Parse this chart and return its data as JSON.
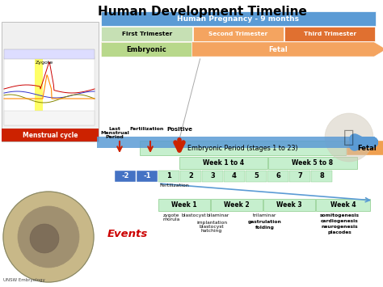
{
  "title": "Human Development Timeline",
  "bg_color": "#ffffff",
  "colors": {
    "pregnancy_blue": "#5b9bd5",
    "trimester1_green": "#c6e0b4",
    "trimester2_orange": "#f4a460",
    "trimester3_orange": "#e07030",
    "embryonic_green": "#b8d88b",
    "fetal_orange": "#f4a460",
    "blue_arrow": "#5b9bd5",
    "light_green": "#c6efce",
    "neg_blue": "#4472c4",
    "red_arrow": "#cc2200",
    "menstrual_red": "#cc2200",
    "fetal_box_orange": "#f0a050",
    "events_red": "#cc0000"
  },
  "pregnancy_label": "Human Pregnancy - 9 months",
  "trimesters": [
    "First Trimester",
    "Second Trimester",
    "Third Trimester"
  ],
  "embryonic_label": "Embryonic",
  "fetal_label": "Fetal",
  "embryonic_period_label": "Embryonic Period (stages 1 to 23)",
  "fetal_box_label": "Fetal",
  "week_groups": [
    "Week 1 to 4",
    "Week 5 to 8"
  ],
  "week_numbers_neg": [
    -2,
    -1
  ],
  "week_numbers_pos": [
    1,
    2,
    3,
    4,
    5,
    6,
    7,
    8
  ],
  "week_labels": [
    "Week 1",
    "Week 2",
    "Week 3",
    "Week 4"
  ],
  "lmp_lines": [
    "Last",
    "Menstrual",
    "Period"
  ],
  "fertilization_label": "Fertilization",
  "positive_label": "Positive",
  "zygote_label": "Zygote",
  "events_label": "Events",
  "menstrual_label": "Menstrual cycle",
  "unsw_label": "UNSW Embryology",
  "events_col1_r1": [
    "zygote",
    "morula"
  ],
  "events_col1_r2": [
    "blastocyst"
  ],
  "events_col1_r3": [
    "bilaminar"
  ],
  "events_col2": [
    "implantation",
    "blastocyst",
    "hatching"
  ],
  "events_col3a": [
    "trilaminar"
  ],
  "events_col3b": [
    "gastrulation",
    "folding"
  ],
  "events_col4": [
    "somitogenesis",
    "cardiogenesis",
    "neurogenesis",
    "placodes"
  ]
}
